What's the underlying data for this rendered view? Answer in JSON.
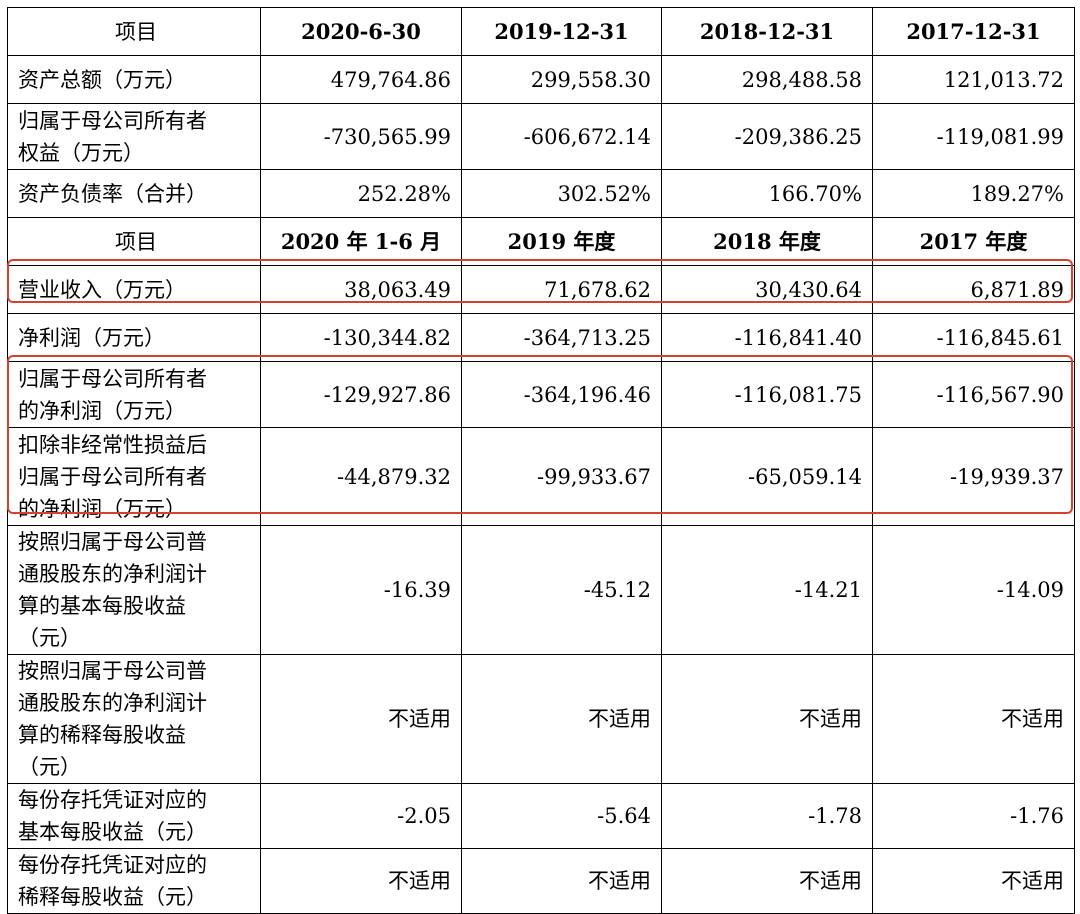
{
  "balance_header": [
    "项目",
    "2020-6-30",
    "2019-12-31",
    "2018-12-31",
    "2017-12-31"
  ],
  "balance_rows": [
    {
      "label": "资产总额（万元）",
      "values": [
        "479,764.86",
        "299,558.30",
        "298,488.58",
        "121,013.72"
      ]
    },
    {
      "label": "归属于母公司所有者\n权益（万元）",
      "values": [
        "-730,565.99",
        "-606,672.14",
        "-209,386.25",
        "-119,081.99"
      ]
    },
    {
      "label": "资产负债率（合并）",
      "values": [
        "252.28%",
        "302.52%",
        "166.70%",
        "189.27%"
      ]
    }
  ],
  "income_header": [
    "项目",
    "2020 年 1-6 月",
    "2019 年度",
    "2018 年度",
    "2017 年度"
  ],
  "income_rows": [
    {
      "label": "营业收入（万元）",
      "values": [
        "38,063.49",
        "71,678.62",
        "30,430.64",
        "6,871.89"
      ]
    },
    {
      "label": "净利润（万元）",
      "values": [
        "-130,344.82",
        "-364,713.25",
        "-116,841.40",
        "-116,845.61"
      ]
    },
    {
      "label": "归属于母公司所有者\n的净利润（万元）",
      "values": [
        "-129,927.86",
        "-364,196.46",
        "-116,081.75",
        "-116,567.90"
      ]
    },
    {
      "label": "扣除非经常性损益后\n归属于母公司所有者\n的净利润（万元）",
      "values": [
        "-44,879.32",
        "-99,933.67",
        "-65,059.14",
        "-19,939.37"
      ]
    },
    {
      "label": "按照归属于母公司普\n通股股东的净利润计\n算的基本每股收益\n（元）",
      "values": [
        "-16.39",
        "-45.12",
        "-14.21",
        "-14.09"
      ]
    },
    {
      "label": "按照归属于母公司普\n通股股东的净利润计\n算的稀释每股收益\n（元）",
      "values": [
        "不适用",
        "不适用",
        "不适用",
        "不适用"
      ]
    },
    {
      "label": "每份存托凭证对应的\n基本每股收益（元）",
      "values": [
        "-2.05",
        "-5.64",
        "-1.78",
        "-1.76"
      ]
    },
    {
      "label": "每份存托凭证对应的\n稀释每股收益（元）",
      "values": [
        "不适用",
        "不适用",
        "不适用",
        "不适用"
      ]
    }
  ],
  "highlight_color": "#d8402e"
}
